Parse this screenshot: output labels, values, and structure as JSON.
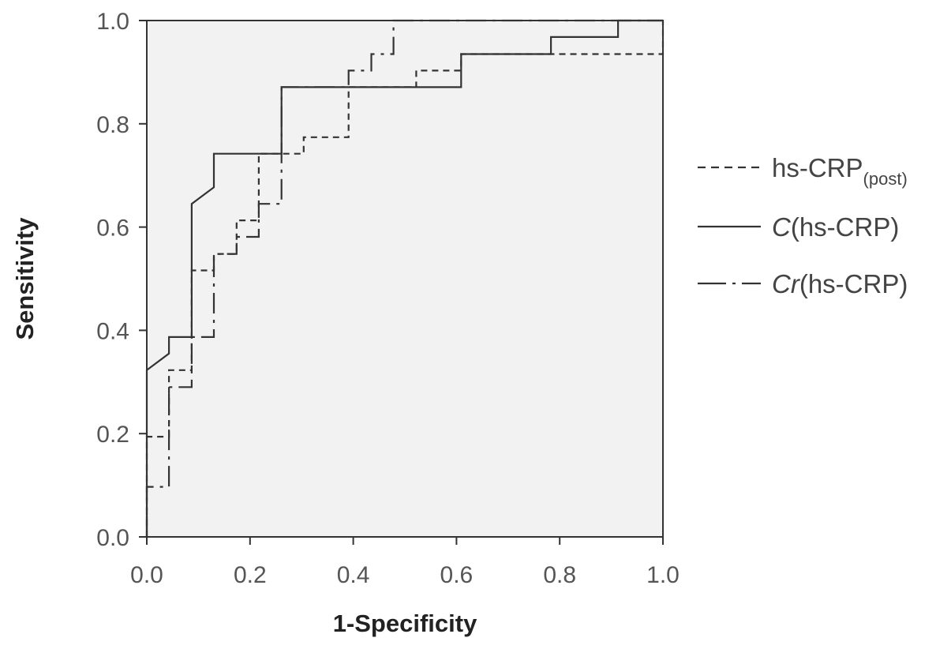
{
  "chart_data": {
    "type": "line",
    "xlabel": "1-Specificity",
    "ylabel": "Sensitivity",
    "xlim": [
      0,
      1
    ],
    "ylim": [
      0,
      1
    ],
    "x_ticks": [
      "0.0",
      "0.2",
      "0.4",
      "0.6",
      "0.8",
      "1.0"
    ],
    "y_ticks": [
      "0.0",
      "0.2",
      "0.4",
      "0.6",
      "0.8",
      "1.0"
    ],
    "grid": false,
    "legend_position": "right",
    "series": [
      {
        "name": "hs-CRP",
        "name_subscript": "(post)",
        "style": "dashed",
        "color": "#333333",
        "points": [
          [
            0,
            0
          ],
          [
            0,
            0.194
          ],
          [
            0.043,
            0.194
          ],
          [
            0.043,
            0.323
          ],
          [
            0.087,
            0.323
          ],
          [
            0.087,
            0.516
          ],
          [
            0.13,
            0.516
          ],
          [
            0.13,
            0.548
          ],
          [
            0.174,
            0.548
          ],
          [
            0.174,
            0.613
          ],
          [
            0.217,
            0.613
          ],
          [
            0.217,
            0.742
          ],
          [
            0.304,
            0.742
          ],
          [
            0.304,
            0.774
          ],
          [
            0.391,
            0.774
          ],
          [
            0.391,
            0.871
          ],
          [
            0.522,
            0.871
          ],
          [
            0.522,
            0.903
          ],
          [
            0.609,
            0.903
          ],
          [
            0.609,
            0.935
          ],
          [
            1.0,
            0.935
          ],
          [
            1.0,
            1.0
          ]
        ]
      },
      {
        "name": "C(hs-CRP)",
        "name_italic": "C",
        "name_rest": "(hs-CRP)",
        "style": "solid",
        "color": "#333333",
        "points": [
          [
            0,
            0
          ],
          [
            0,
            0.323
          ],
          [
            0.043,
            0.355
          ],
          [
            0.043,
            0.387
          ],
          [
            0.087,
            0.387
          ],
          [
            0.087,
            0.645
          ],
          [
            0.13,
            0.677
          ],
          [
            0.13,
            0.742
          ],
          [
            0.261,
            0.742
          ],
          [
            0.261,
            0.871
          ],
          [
            0.609,
            0.871
          ],
          [
            0.609,
            0.935
          ],
          [
            0.783,
            0.935
          ],
          [
            0.783,
            0.968
          ],
          [
            0.913,
            0.968
          ],
          [
            0.913,
            1.0
          ],
          [
            1.0,
            1.0
          ]
        ]
      },
      {
        "name": "Cr(hs-CRP)",
        "name_italic": "Cr",
        "name_rest": "(hs-CRP)",
        "style": "dashdot",
        "color": "#333333",
        "points": [
          [
            0,
            0
          ],
          [
            0,
            0.097
          ],
          [
            0.043,
            0.097
          ],
          [
            0.043,
            0.29
          ],
          [
            0.087,
            0.29
          ],
          [
            0.087,
            0.387
          ],
          [
            0.13,
            0.387
          ],
          [
            0.13,
            0.548
          ],
          [
            0.174,
            0.548
          ],
          [
            0.174,
            0.581
          ],
          [
            0.217,
            0.581
          ],
          [
            0.217,
            0.645
          ],
          [
            0.261,
            0.645
          ],
          [
            0.261,
            0.871
          ],
          [
            0.391,
            0.871
          ],
          [
            0.391,
            0.903
          ],
          [
            0.435,
            0.903
          ],
          [
            0.435,
            0.935
          ],
          [
            0.478,
            0.935
          ],
          [
            0.478,
            1.0
          ],
          [
            1.0,
            1.0
          ]
        ]
      }
    ]
  }
}
